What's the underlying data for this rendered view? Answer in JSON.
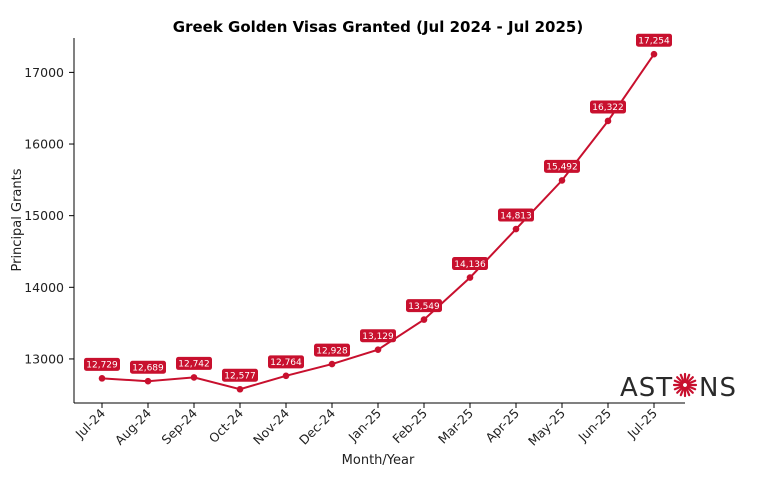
{
  "colors": {
    "series": "#c8102e",
    "axis": "#000000",
    "text": "#222222"
  },
  "brand": {
    "logo_text": "ASTONS",
    "logo_icon": "starburst-icon"
  },
  "chart_data": {
    "type": "line",
    "title": "Greek Golden Visas Granted (Jul 2024 - Jul 2025)",
    "xlabel": "Month/Year",
    "ylabel": "Principal Grants",
    "categories": [
      "Jul-24",
      "Aug-24",
      "Sep-24",
      "Oct-24",
      "Nov-24",
      "Dec-24",
      "Jan-25",
      "Feb-25",
      "Mar-25",
      "Apr-25",
      "May-25",
      "Jun-25",
      "Jul-25"
    ],
    "values": [
      12729,
      12689,
      12742,
      12577,
      12764,
      12928,
      13129,
      13549,
      14136,
      14813,
      15492,
      16322,
      17254
    ],
    "data_labels": [
      "12,729",
      "12,689",
      "12,742",
      "12,577",
      "12,764",
      "12,928",
      "13,129",
      "13,549",
      "14,136",
      "14,813",
      "15,492",
      "16,322",
      "17,254"
    ],
    "ylim": [
      12385,
      17480
    ],
    "yticks": [
      13000,
      14000,
      15000,
      16000,
      17000
    ],
    "ytick_labels": [
      "13000",
      "14000",
      "15000",
      "16000",
      "17000"
    ],
    "grid": false,
    "legend": "none"
  }
}
